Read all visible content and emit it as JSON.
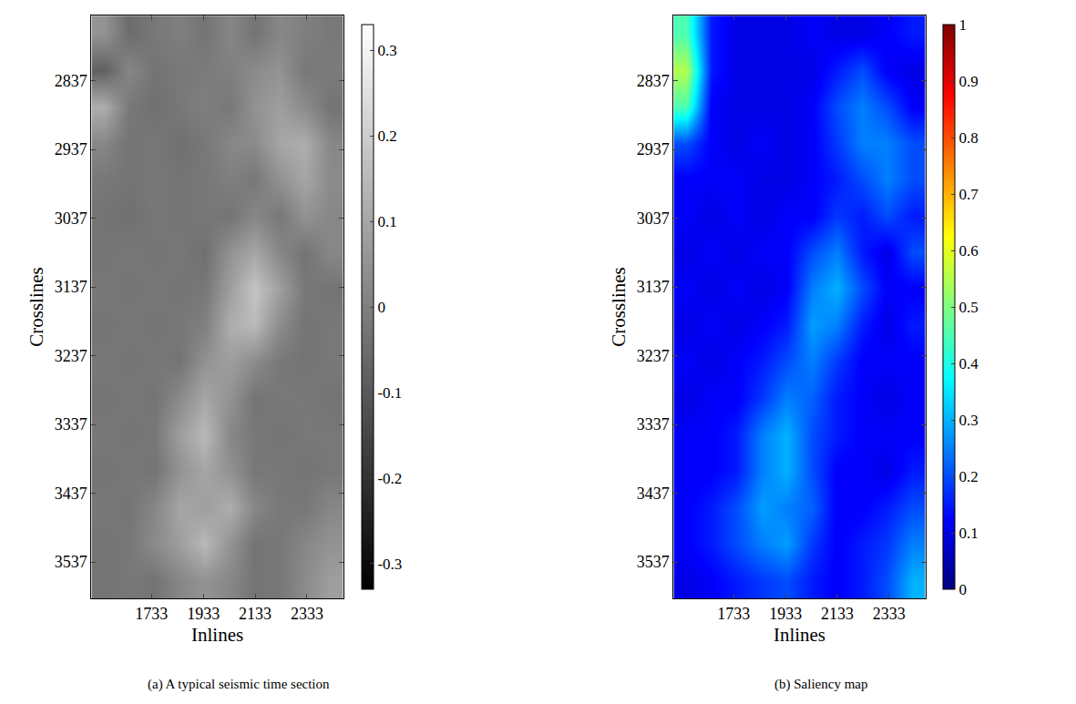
{
  "chart_data": [
    {
      "type": "heatmap",
      "title": "(a) A typical seismic time section",
      "x_label": "Inlines",
      "y_label": "Crosslines",
      "color": "gray",
      "x": [
        1550,
        1647,
        1744,
        1841,
        1938,
        2035,
        2132,
        2229,
        2326,
        2424
      ],
      "y": [
        2769,
        2822,
        2875,
        2928,
        2981,
        3034,
        3087,
        3140,
        3193,
        3246,
        3299,
        3352,
        3405,
        3458,
        3511,
        3564
      ],
      "xlim": [
        1501,
        2473
      ],
      "ylim": [
        3590,
        2742
      ],
      "xticks": [
        1733,
        1933,
        2133,
        2333
      ],
      "yticks": [
        2837,
        2937,
        3037,
        3137,
        3237,
        3337,
        3437,
        3537
      ],
      "color_range": [
        -0.33,
        0.33
      ],
      "color_ticks": [
        -0.3,
        -0.2,
        -0.1,
        0,
        0.1,
        0.2,
        0.3
      ],
      "z": [
        [
          0.05,
          -0.05,
          -0.02,
          0,
          -0.03,
          0.02,
          -0.03,
          0.02,
          0,
          -0.02
        ],
        [
          -0.08,
          0.02,
          -0.03,
          -0.02,
          -0.01,
          0,
          0.03,
          0.05,
          -0.02,
          -0.01
        ],
        [
          0.12,
          -0.02,
          -0.04,
          -0.02,
          0,
          -0.02,
          0.05,
          0.08,
          0.03,
          -0.03
        ],
        [
          0.02,
          -0.03,
          -0.02,
          -0.04,
          -0.02,
          0.02,
          0.03,
          0.1,
          0.12,
          0.02
        ],
        [
          -0.02,
          -0.03,
          -0.02,
          -0.03,
          -0.02,
          0,
          -0.02,
          0.05,
          0.1,
          0.03
        ],
        [
          -0.03,
          -0.04,
          -0.02,
          -0.03,
          -0.02,
          -0.03,
          0.02,
          -0.02,
          0.05,
          0.02
        ],
        [
          -0.03,
          -0.02,
          -0.03,
          -0.02,
          -0.04,
          0.05,
          0.1,
          0.02,
          -0.03,
          0.02
        ],
        [
          -0.02,
          -0.03,
          -0.02,
          -0.03,
          -0.02,
          0.08,
          0.18,
          0.08,
          -0.02,
          -0.03
        ],
        [
          -0.03,
          -0.02,
          -0.03,
          -0.02,
          0,
          0.12,
          0.15,
          0.03,
          -0.03,
          -0.02
        ],
        [
          -0.02,
          -0.03,
          -0.02,
          -0.03,
          0.05,
          0.08,
          0.03,
          -0.02,
          -0.03,
          -0.02
        ],
        [
          -0.03,
          -0.02,
          -0.03,
          0.03,
          0.1,
          0.05,
          -0.03,
          -0.02,
          -0.02,
          -0.03
        ],
        [
          -0.02,
          -0.03,
          -0.02,
          0.08,
          0.15,
          0.02,
          -0.02,
          -0.03,
          -0.02,
          -0.02
        ],
        [
          -0.03,
          -0.02,
          -0.03,
          0.05,
          0.1,
          0.05,
          -0.02,
          -0.02,
          -0.03,
          -0.02
        ],
        [
          -0.02,
          -0.03,
          0.02,
          0.1,
          0.08,
          0.12,
          0.02,
          -0.02,
          -0.02,
          0.02
        ],
        [
          -0.03,
          -0.02,
          0.03,
          0.08,
          0.15,
          0.05,
          -0.03,
          -0.02,
          0.02,
          0.05
        ],
        [
          -0.03,
          -0.02,
          -0.03,
          0.02,
          0.05,
          0.02,
          -0.03,
          -0.02,
          0.03,
          0.08
        ]
      ]
    },
    {
      "type": "heatmap",
      "title": "(b) Saliency map",
      "x_label": "Inlines",
      "y_label": "Crosslines",
      "color": "jet",
      "x": [
        1550,
        1647,
        1744,
        1841,
        1938,
        2035,
        2132,
        2229,
        2326,
        2424
      ],
      "y": [
        2769,
        2822,
        2875,
        2928,
        2981,
        3034,
        3087,
        3140,
        3193,
        3246,
        3299,
        3352,
        3405,
        3458,
        3511,
        3564
      ],
      "xlim": [
        1501,
        2473
      ],
      "ylim": [
        3590,
        2742
      ],
      "xticks": [
        1733,
        1933,
        2133,
        2333
      ],
      "yticks": [
        2837,
        2937,
        3037,
        3137,
        3237,
        3337,
        3437,
        3537
      ],
      "color_range": [
        0,
        1
      ],
      "color_ticks": [
        0,
        0.1,
        0.2,
        0.3,
        0.4,
        0.5,
        0.6,
        0.7,
        0.8,
        0.9,
        1
      ],
      "z": [
        [
          0.45,
          0.15,
          0.1,
          0.1,
          0.1,
          0.12,
          0.1,
          0.1,
          0.12,
          0.15
        ],
        [
          0.55,
          0.15,
          0.1,
          0.1,
          0.1,
          0.1,
          0.15,
          0.2,
          0.12,
          0.1
        ],
        [
          0.45,
          0.12,
          0.1,
          0.1,
          0.1,
          0.12,
          0.2,
          0.25,
          0.2,
          0.12
        ],
        [
          0.2,
          0.12,
          0.1,
          0.12,
          0.1,
          0.12,
          0.18,
          0.25,
          0.25,
          0.2
        ],
        [
          0.12,
          0.12,
          0.12,
          0.1,
          0.1,
          0.12,
          0.15,
          0.2,
          0.25,
          0.2
        ],
        [
          0.12,
          0.1,
          0.12,
          0.1,
          0.12,
          0.12,
          0.18,
          0.15,
          0.2,
          0.15
        ],
        [
          0.1,
          0.12,
          0.1,
          0.12,
          0.12,
          0.2,
          0.25,
          0.15,
          0.1,
          0.2
        ],
        [
          0.12,
          0.1,
          0.12,
          0.1,
          0.12,
          0.25,
          0.3,
          0.2,
          0.12,
          0.12
        ],
        [
          0.1,
          0.12,
          0.1,
          0.12,
          0.15,
          0.28,
          0.25,
          0.15,
          0.1,
          0.15
        ],
        [
          0.12,
          0.1,
          0.12,
          0.15,
          0.2,
          0.25,
          0.18,
          0.12,
          0.12,
          0.12
        ],
        [
          0.1,
          0.12,
          0.12,
          0.18,
          0.25,
          0.22,
          0.15,
          0.12,
          0.1,
          0.12
        ],
        [
          0.12,
          0.12,
          0.15,
          0.25,
          0.3,
          0.2,
          0.15,
          0.12,
          0.12,
          0.12
        ],
        [
          0.12,
          0.12,
          0.15,
          0.25,
          0.3,
          0.2,
          0.12,
          0.12,
          0.1,
          0.15
        ],
        [
          0.12,
          0.15,
          0.2,
          0.28,
          0.25,
          0.22,
          0.12,
          0.12,
          0.15,
          0.2
        ],
        [
          0.12,
          0.15,
          0.2,
          0.25,
          0.28,
          0.18,
          0.12,
          0.15,
          0.18,
          0.25
        ],
        [
          0.1,
          0.12,
          0.15,
          0.18,
          0.2,
          0.15,
          0.12,
          0.15,
          0.2,
          0.3
        ]
      ]
    }
  ]
}
